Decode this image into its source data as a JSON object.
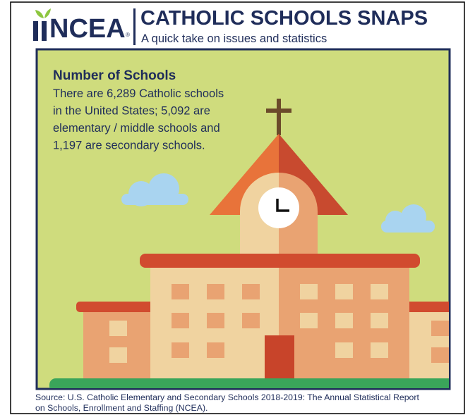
{
  "header": {
    "logo": "NCEA",
    "logo_mark": "®",
    "title": "CATHOLIC SCHOOLS SNAPS",
    "subtitle": "A quick take on issues and statistics"
  },
  "card": {
    "heading": "Number of Schools",
    "body_lines": [
      "There are 6,289 Catholic schools",
      "in the United States; 5,092 are",
      "elementary / middle schools and",
      "1,197 are secondary schools."
    ]
  },
  "source_lines": [
    "Source: U.S. Catholic Elementary and Secondary Schools 2018-2019: The Annual Statistical Report",
    "on Schools, Enrollment and Staffing (NCEA)."
  ]
}
